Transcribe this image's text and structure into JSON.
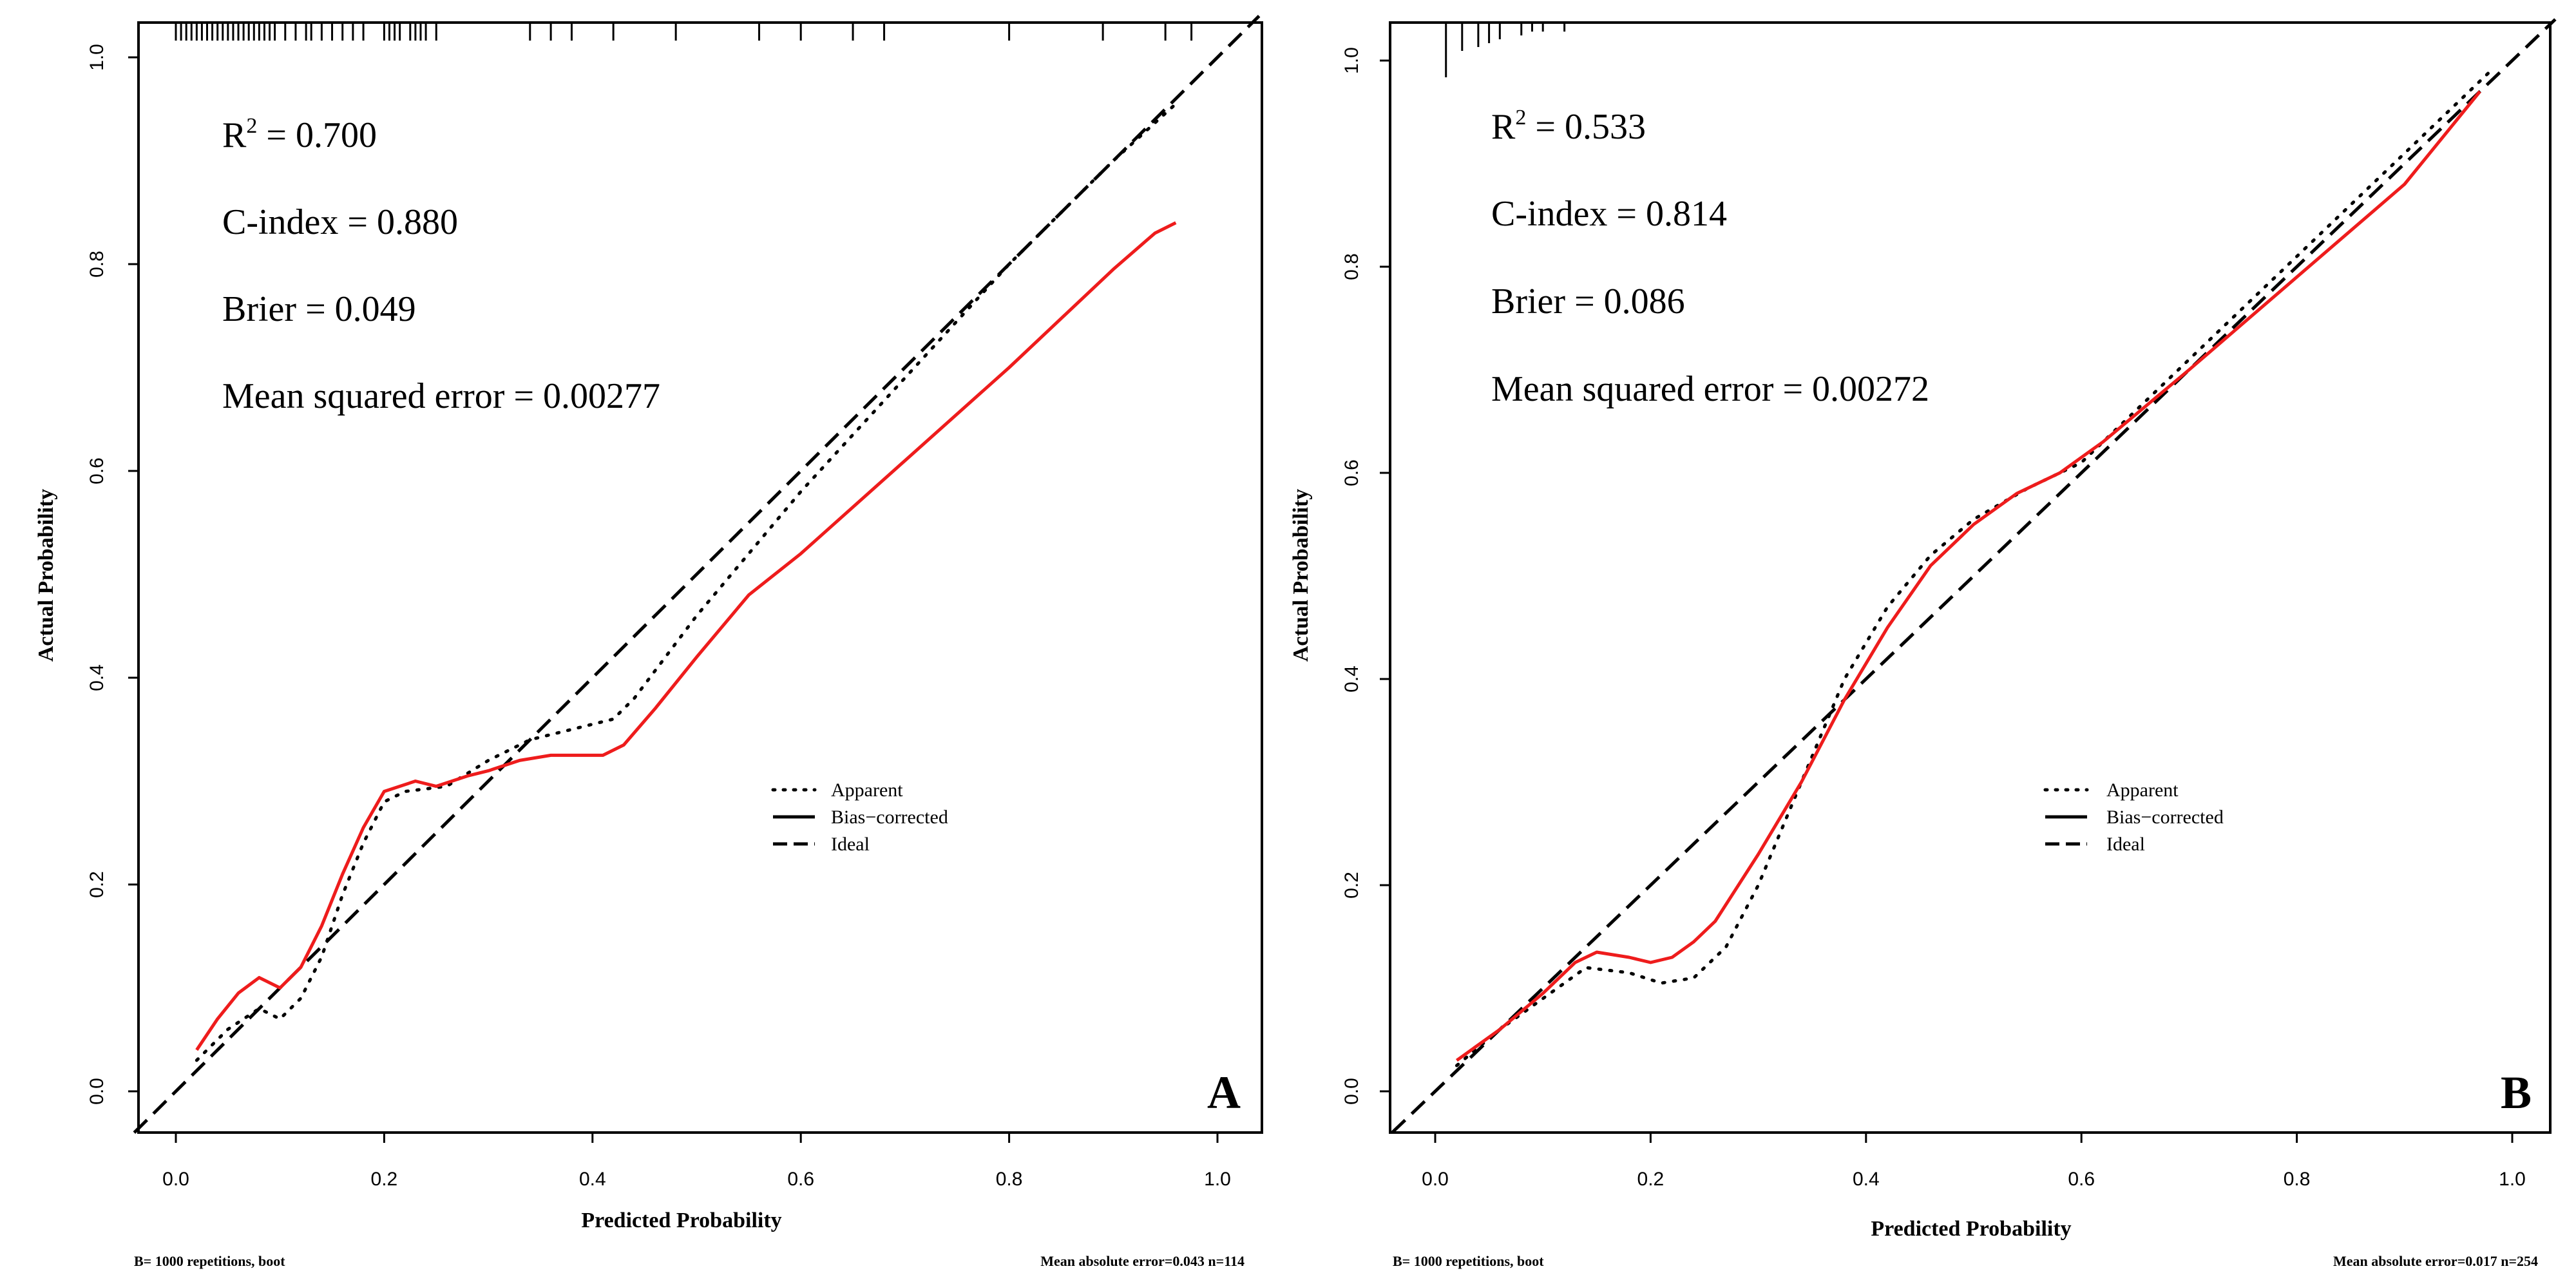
{
  "chart_data": [
    {
      "type": "line",
      "panel": "A",
      "xlabel": "Predicted Probability",
      "ylabel": "Actual Probability",
      "xlim": [
        -0.04,
        1.04
      ],
      "ylim": [
        -0.04,
        1.035
      ],
      "xticks": [
        "0.0",
        "0.2",
        "0.4",
        "0.6",
        "0.8",
        "1.0"
      ],
      "yticks": [
        "0.0",
        "0.2",
        "0.4",
        "0.6",
        "0.8",
        "1.0"
      ],
      "stats": {
        "r2_prefix": "R",
        "r2_sup": "2",
        "r2_value": " = 0.700",
        "cindex": "C-index = 0.880",
        "brier": "Brier = 0.049",
        "mse": "Mean squared error = 0.00277"
      },
      "legend": [
        "Apparent",
        "Bias−corrected",
        "Ideal"
      ],
      "footer_left": "B= 1000 repetitions, boot",
      "footer_right": "Mean absolute error=0.043  n=114",
      "rug": [
        0.0,
        0.005,
        0.01,
        0.015,
        0.02,
        0.025,
        0.03,
        0.035,
        0.04,
        0.045,
        0.05,
        0.055,
        0.06,
        0.065,
        0.07,
        0.075,
        0.08,
        0.085,
        0.09,
        0.095,
        0.105,
        0.115,
        0.125,
        0.13,
        0.14,
        0.15,
        0.16,
        0.17,
        0.18,
        0.2,
        0.205,
        0.21,
        0.215,
        0.225,
        0.23,
        0.235,
        0.24,
        0.25,
        0.34,
        0.36,
        0.38,
        0.42,
        0.48,
        0.56,
        0.6,
        0.65,
        0.68,
        0.8,
        0.89,
        0.95,
        0.975
      ],
      "series": [
        {
          "name": "Apparent",
          "x": [
            0.02,
            0.05,
            0.08,
            0.1,
            0.12,
            0.14,
            0.16,
            0.18,
            0.2,
            0.22,
            0.26,
            0.3,
            0.34,
            0.38,
            0.42,
            0.44,
            0.47,
            0.5,
            0.55,
            0.6,
            0.7,
            0.8,
            0.9,
            0.96
          ],
          "y": [
            0.03,
            0.06,
            0.08,
            0.07,
            0.09,
            0.13,
            0.19,
            0.24,
            0.28,
            0.29,
            0.295,
            0.32,
            0.34,
            0.35,
            0.36,
            0.38,
            0.42,
            0.46,
            0.52,
            0.58,
            0.69,
            0.8,
            0.9,
            0.955
          ]
        },
        {
          "name": "Bias-corrected",
          "x": [
            0.02,
            0.04,
            0.06,
            0.08,
            0.1,
            0.12,
            0.14,
            0.16,
            0.18,
            0.2,
            0.23,
            0.25,
            0.28,
            0.3,
            0.33,
            0.36,
            0.38,
            0.41,
            0.43,
            0.46,
            0.5,
            0.55,
            0.6,
            0.7,
            0.8,
            0.9,
            0.94,
            0.96
          ],
          "y": [
            0.04,
            0.07,
            0.095,
            0.11,
            0.1,
            0.12,
            0.16,
            0.21,
            0.255,
            0.29,
            0.3,
            0.295,
            0.305,
            0.31,
            0.32,
            0.325,
            0.325,
            0.325,
            0.335,
            0.37,
            0.42,
            0.48,
            0.52,
            0.61,
            0.7,
            0.795,
            0.83,
            0.84
          ]
        }
      ]
    },
    {
      "type": "line",
      "panel": "B",
      "xlabel": "Predicted Probability",
      "ylabel": "Actual Probability",
      "xlim": [
        -0.04,
        1.04
      ],
      "ylim": [
        -0.04,
        1.035
      ],
      "xticks": [
        "0.0",
        "0.2",
        "0.4",
        "0.6",
        "0.8",
        "1.0"
      ],
      "yticks": [
        "0.0",
        "0.2",
        "0.4",
        "0.6",
        "0.8",
        "1.0"
      ],
      "stats": {
        "r2_prefix": "R",
        "r2_sup": "2",
        "r2_value": " = 0.533",
        "cindex": "C-index = 0.814",
        "brier": "Brier = 0.086",
        "mse": "Mean squared error = 0.00272"
      },
      "legend": [
        "Apparent",
        "Bias−corrected",
        "Ideal"
      ],
      "footer_left": "B= 1000 repetitions, boot",
      "footer_right": "Mean absolute error=0.017  n=254",
      "rug": [
        0.01,
        0.025,
        0.04,
        0.05,
        0.06,
        0.08,
        0.09,
        0.1,
        0.12
      ],
      "series": [
        {
          "name": "Apparent",
          "x": [
            0.02,
            0.06,
            0.1,
            0.14,
            0.18,
            0.21,
            0.24,
            0.27,
            0.3,
            0.34,
            0.38,
            0.42,
            0.46,
            0.5,
            0.55,
            0.6,
            0.7,
            0.8,
            0.9,
            0.98
          ],
          "y": [
            0.025,
            0.06,
            0.09,
            0.12,
            0.115,
            0.105,
            0.11,
            0.14,
            0.2,
            0.3,
            0.4,
            0.47,
            0.52,
            0.555,
            0.585,
            0.61,
            0.71,
            0.81,
            0.91,
            0.99
          ]
        },
        {
          "name": "Bias-corrected",
          "x": [
            0.02,
            0.06,
            0.1,
            0.13,
            0.15,
            0.18,
            0.2,
            0.22,
            0.24,
            0.26,
            0.3,
            0.34,
            0.38,
            0.42,
            0.46,
            0.5,
            0.54,
            0.58,
            0.62,
            0.7,
            0.8,
            0.9,
            0.97
          ],
          "y": [
            0.03,
            0.06,
            0.095,
            0.125,
            0.135,
            0.13,
            0.125,
            0.13,
            0.145,
            0.165,
            0.23,
            0.3,
            0.38,
            0.45,
            0.51,
            0.55,
            0.58,
            0.6,
            0.63,
            0.7,
            0.79,
            0.88,
            0.97
          ]
        }
      ]
    }
  ]
}
